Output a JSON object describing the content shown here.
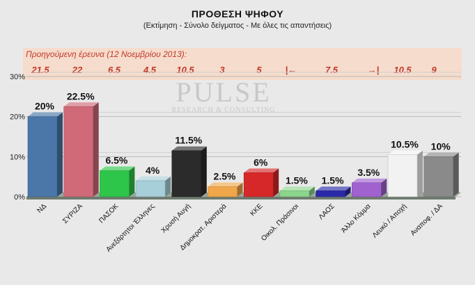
{
  "chart_data": {
    "type": "bar",
    "title": "ΠΡΟΘΕΣΗ ΨΗΦΟΥ",
    "subtitle": "(Εκτίμηση - Σύνολο δείγματος - Με όλες τις απαντήσεις)",
    "categories": [
      "ΝΔ",
      "ΣΥΡΙΖΑ",
      "ΠΑΣΟΚ",
      "Ανεξάρτητοι Έλληνες",
      "Χρυσή Αυγή",
      "Δημοκρατ. Αριστερά",
      "ΚΚΕ",
      "Οικολ. Πράσινοι",
      "ΛΑΟΣ",
      "Άλλο Κόμμα",
      "Λευκό / Αποχή",
      "Αναποφ. / ΔΑ"
    ],
    "values": [
      20,
      22.5,
      6.5,
      4,
      11.5,
      2.5,
      6,
      1.5,
      1.5,
      3.5,
      10.5,
      10
    ],
    "value_labels": [
      "20%",
      "22.5%",
      "6.5%",
      "4%",
      "11.5%",
      "2.5%",
      "6%",
      "1.5%",
      "1.5%",
      "3.5%",
      "10.5%",
      "10%"
    ],
    "colors": [
      "#4a77a8",
      "#d06a78",
      "#2ec64a",
      "#a7cfd9",
      "#2b2b2b",
      "#f0a64a",
      "#d62828",
      "#8bd68c",
      "#2a2aa8",
      "#a062cf",
      "#f2f2f2",
      "#8a8a8a"
    ],
    "ylim": [
      0,
      30
    ],
    "yticks": [
      "0%",
      "10%",
      "20%",
      "30%"
    ],
    "xlabel": "",
    "ylabel": "",
    "grid": true,
    "previous_survey": {
      "label": "Προηγούμενη έρευνα (12 Νοεμβρίου 2013):",
      "values": [
        "21.5",
        "22",
        "6.5",
        "4.5",
        "10.5",
        "3",
        "5"
      ],
      "span_value": "7.5",
      "span_left_arrow": "|←",
      "span_right_arrow": "→|",
      "tail_values": [
        "10.5",
        "9"
      ]
    }
  },
  "watermark": {
    "main": "PULSE",
    "sub": "RESEARCH & CONSULTING"
  }
}
